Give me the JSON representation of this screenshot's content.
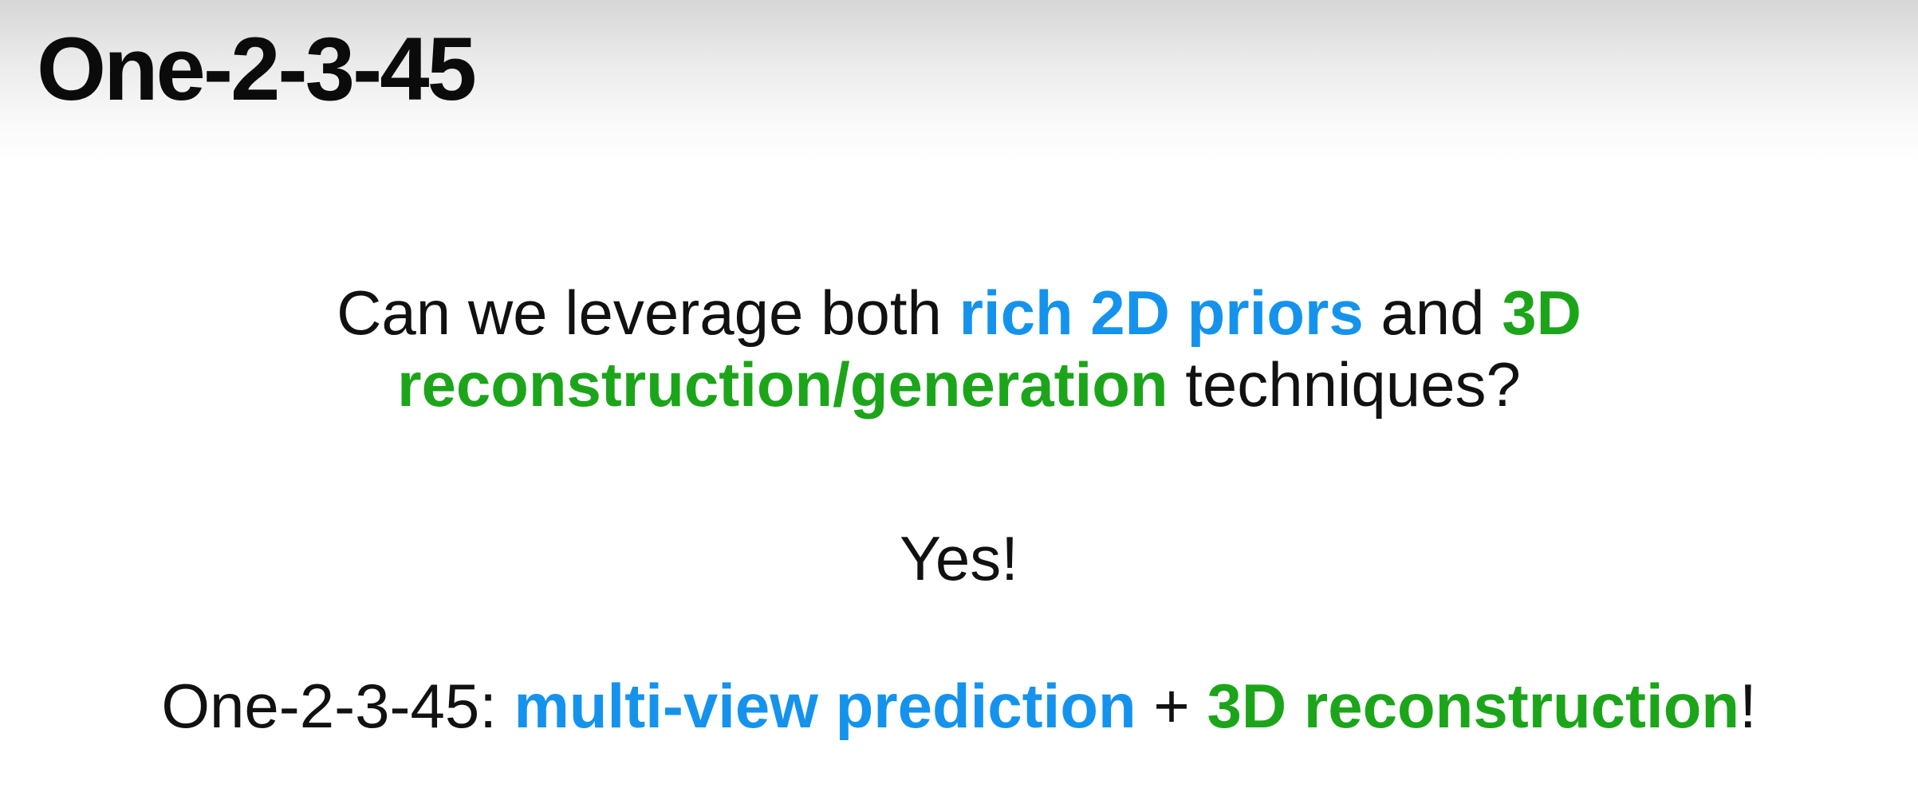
{
  "slide": {
    "title": "One-2-3-45",
    "question": {
      "part1": "Can we leverage both ",
      "highlight_blue": "rich 2D priors",
      "part2": " and ",
      "highlight_green": "3D reconstruction/generation",
      "part3": " techniques?"
    },
    "answer": "Yes!",
    "summary": {
      "prefix": "One-2-3-45: ",
      "highlight_blue": "multi-view prediction",
      "connector": " + ",
      "highlight_green": "3D reconstruction",
      "suffix": "!"
    }
  },
  "colors": {
    "blue_highlight": "#1593ec",
    "green_highlight": "#1ca51a",
    "text": "#111111"
  }
}
